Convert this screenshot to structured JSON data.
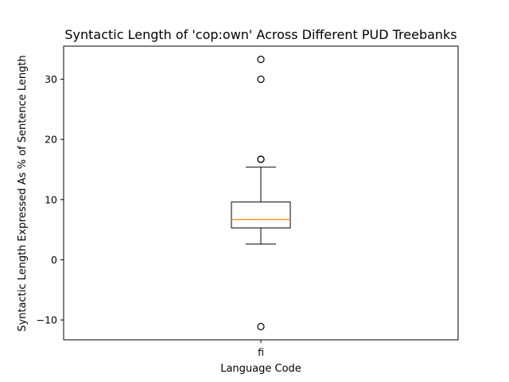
{
  "chart_data": {
    "type": "box",
    "title": "Syntactic Length of 'cop:own' Across Different PUD Treebanks",
    "xlabel": "Language Code",
    "ylabel": "Syntactic Length Expressed As % of Sentence Length",
    "categories": [
      "fi"
    ],
    "boxes": [
      {
        "category": "fi",
        "whisker_low": 2.6,
        "q1": 5.3,
        "median": 6.7,
        "q3": 9.6,
        "whisker_high": 15.4,
        "outliers": [
          33.3,
          30.0,
          16.7,
          16.7,
          -11.1
        ]
      }
    ],
    "ylim": [
      -13.3,
      35.5
    ],
    "yticks": [
      -10,
      0,
      10,
      20,
      30
    ],
    "grid": false,
    "colors": {
      "box": "#000000",
      "median": "#ff7f0e",
      "outlier_edge": "#000000"
    }
  }
}
